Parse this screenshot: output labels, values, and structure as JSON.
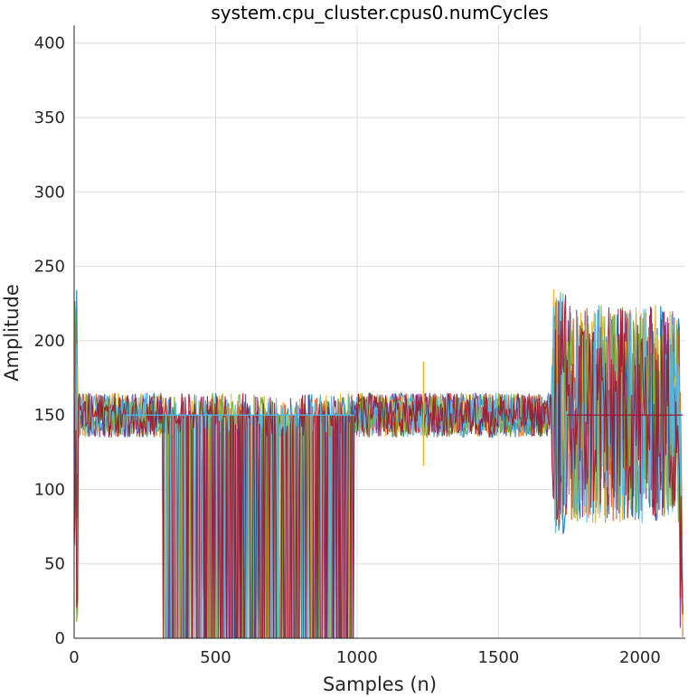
{
  "chart_data": {
    "type": "line",
    "title": "system.cpu_cluster.cpus0.numCycles",
    "xlabel": "Samples (n)",
    "ylabel": "Amplitude",
    "xlim": [
      0,
      2160
    ],
    "ylim": [
      0,
      412
    ],
    "xticks": [
      0,
      500,
      1000,
      1500,
      2000
    ],
    "yticks": [
      0,
      50,
      100,
      150,
      200,
      250,
      300,
      350,
      400
    ],
    "grid": true,
    "series_colors": [
      "#0072BD",
      "#D95319",
      "#EDB120",
      "#7E2F8E",
      "#77AC30",
      "#4DBEEE",
      "#A2142F"
    ],
    "segments": [
      {
        "x": [
          0,
          15
        ],
        "y_range": [
          0,
          235
        ],
        "behavior": "startup-transient"
      },
      {
        "x": [
          15,
          315
        ],
        "y_range": [
          135,
          165
        ],
        "behavior": "oscillation"
      },
      {
        "x": [
          315,
          990
        ],
        "y_range": [
          0,
          165
        ],
        "behavior": "dropouts-to-zero"
      },
      {
        "x": [
          990,
          1335
        ],
        "y_range": [
          135,
          165
        ],
        "behavior": "oscillation"
      },
      {
        "x": [
          1335,
          1690
        ],
        "y_range": [
          135,
          165
        ],
        "behavior": "oscillation"
      },
      {
        "x": [
          1690,
          1740
        ],
        "y_range": [
          70,
          236
        ],
        "behavior": "spike"
      },
      {
        "x": [
          1740,
          2140
        ],
        "y_range": [
          77,
          224
        ],
        "behavior": "wide-oscillation"
      },
      {
        "x": [
          2140,
          2155
        ],
        "y_range": [
          0,
          224
        ],
        "behavior": "fall-off"
      }
    ],
    "annotations": [
      {
        "x": 1235,
        "y_range": [
          116,
          186
        ],
        "note": "single spike"
      }
    ]
  }
}
